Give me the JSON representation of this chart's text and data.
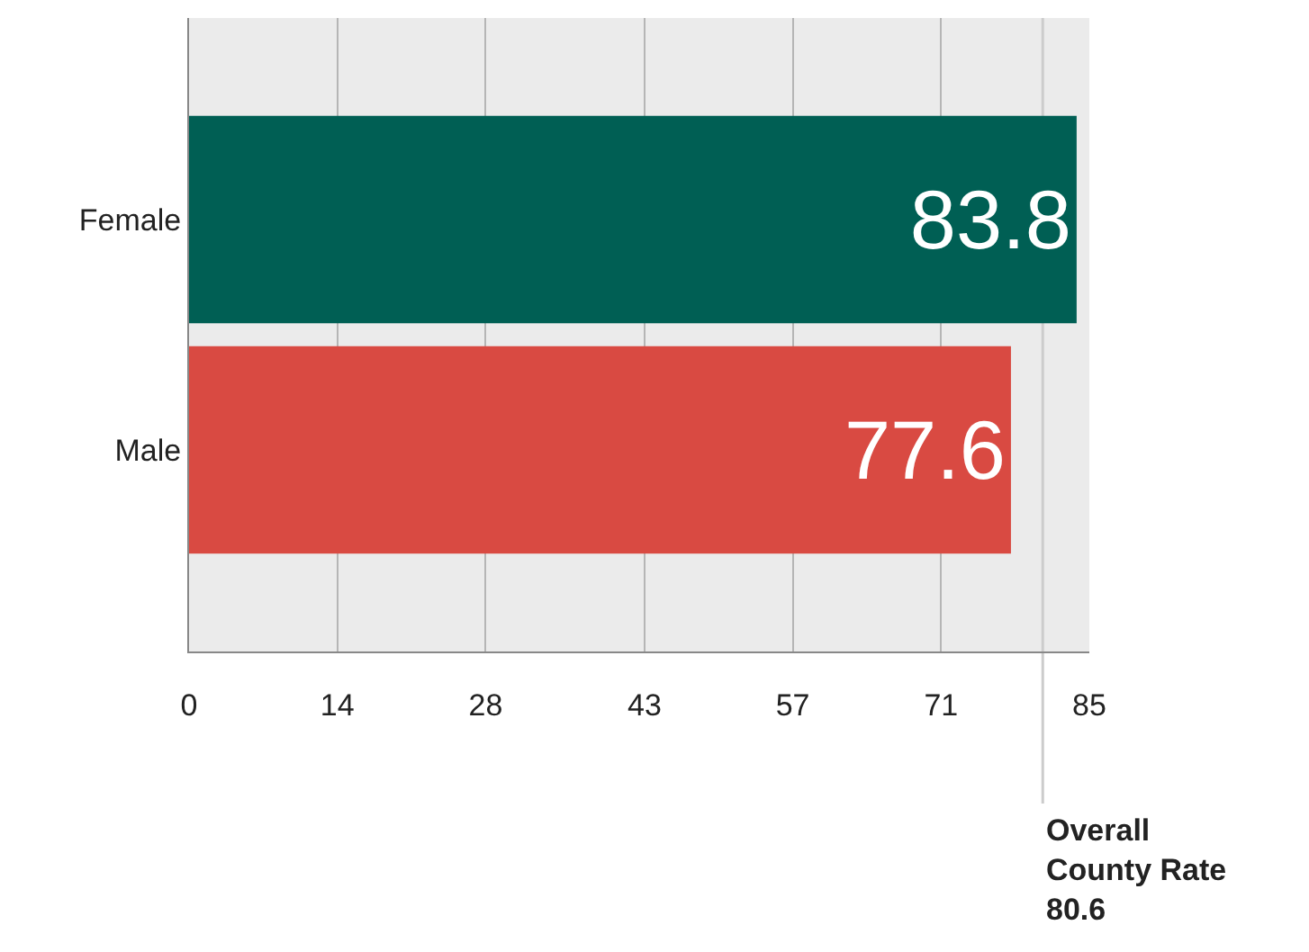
{
  "chart_data": {
    "type": "bar",
    "orientation": "horizontal",
    "categories": [
      "Female",
      "Male"
    ],
    "values": [
      83.8,
      77.6
    ],
    "colors": [
      "#005f54",
      "#d94a42"
    ],
    "data_labels": true,
    "xlim": [
      0,
      85
    ],
    "xticks": [
      0,
      14,
      28,
      43,
      57,
      71,
      85
    ],
    "grid": "x",
    "ref_lines": [
      {
        "axis": "x",
        "value": 80.6,
        "label": "Overall County Rate 80.6",
        "color": "#cccccc"
      }
    ]
  }
}
